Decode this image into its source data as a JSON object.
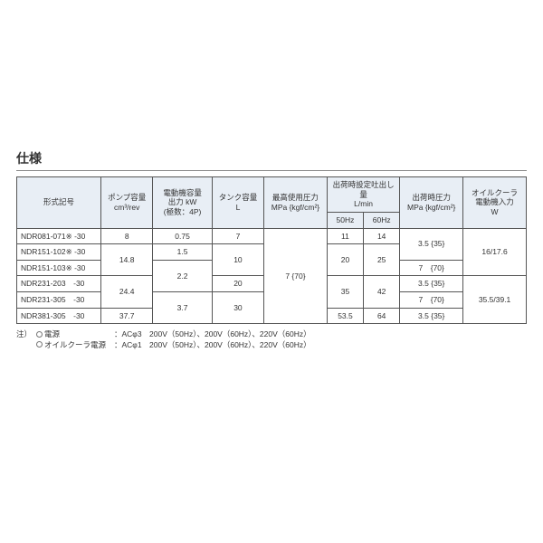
{
  "title": "仕様",
  "headers": {
    "model": "形式記号",
    "pump": "ポンプ容量\ncm³/rev",
    "motor": "電動機容量\n出力 kW\n(極数：4P)",
    "tank": "タンク容量\nL",
    "maxp": "最高使用圧力\nMPa {kgf/cm²}",
    "flow": "出荷時設定吐出し量\nL/min",
    "flow50": "50Hz",
    "flow60": "60Hz",
    "shipp": "出荷時圧力\nMPa {kgf/cm²}",
    "cooler": "オイルクーラ\n電動機入力\nW"
  },
  "rows": {
    "r0_model": "NDR081-071※ -30",
    "r1_model": "NDR151-102※ -30",
    "r2_model": "NDR151-103※ -30",
    "r3_model": "NDR231-203　-30",
    "r4_model": "NDR231-305　-30",
    "r5_model": "NDR381-305　-30"
  },
  "cells": {
    "pump_r0": "8",
    "pump_r12": "14.8",
    "pump_r34": "24.4",
    "pump_r5": "37.7",
    "motor_r0": "0.75",
    "motor_r1": "1.5",
    "motor_r23": "2.2",
    "motor_r45": "3.7",
    "tank_r0": "7",
    "tank_r12": "10",
    "tank_r3": "20",
    "tank_r45": "30",
    "maxp_all": "7 {70}",
    "flow50_r0": "11",
    "flow60_r0": "14",
    "flow50_r12": "20",
    "flow60_r12": "25",
    "flow50_r34": "35",
    "flow60_r34": "42",
    "flow50_r5": "53.5",
    "flow60_r5": "64",
    "shipp_r01": "3.5 {35}",
    "shipp_r2": "7　{70}",
    "shipp_r3": "3.5 {35}",
    "shipp_r4": "7　{70}",
    "shipp_r5": "3.5 {35}",
    "cooler_r012": "16/17.6",
    "cooler_r345": "35.5/39.1"
  },
  "notes": {
    "prefix": "注）",
    "n1_label": "電源",
    "n1_value": "：ACφ3　200V（50Hz）、200V（60Hz）、220V（60Hz）",
    "n2_label": "オイルクーラ電源",
    "n2_value": "：ACφ1　200V（50Hz）、200V（60Hz）、220V（60Hz）"
  },
  "style": {
    "header_bg": "#e8eef5",
    "border_color": "#555555",
    "text_color": "#333333",
    "font_size_table": 8.5,
    "font_size_title": 14
  }
}
